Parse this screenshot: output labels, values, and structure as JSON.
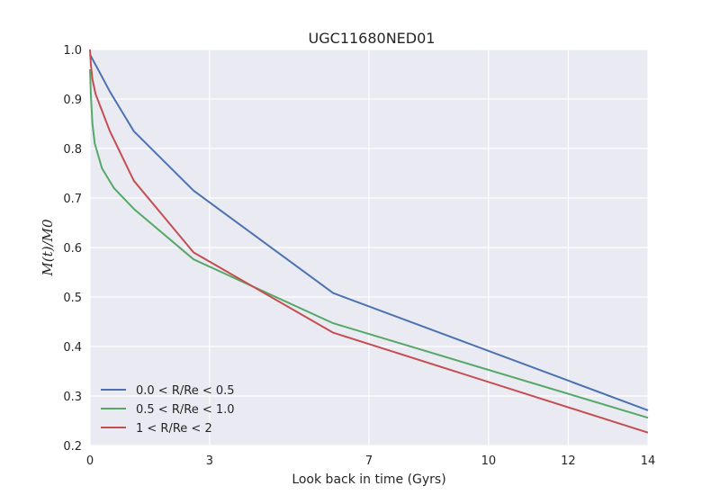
{
  "chart_data": {
    "type": "line",
    "title": "UGC11680NED01",
    "xlabel": "Look back in time (Gyrs)",
    "ylabel": "M(t)/M0",
    "xlim": [
      0,
      14
    ],
    "ylim": [
      0.2,
      1.0
    ],
    "xticks": [
      0,
      3,
      7,
      10,
      12,
      14
    ],
    "yticks": [
      0.2,
      0.3,
      0.4,
      0.5,
      0.6,
      0.7,
      0.8,
      0.9,
      1.0
    ],
    "grid": true,
    "legend_position": "lower-left",
    "series": [
      {
        "name": "0.0 < R/Re < 0.5",
        "color": "#4C72B0",
        "x": [
          0,
          0.1,
          0.2,
          0.5,
          1.1,
          2.6,
          6.1,
          14.0
        ],
        "y": [
          0.99,
          0.975,
          0.96,
          0.915,
          0.835,
          0.715,
          0.508,
          0.271
        ]
      },
      {
        "name": "0.5 < R/Re < 1.0",
        "color": "#55A868",
        "x": [
          0,
          0.02,
          0.06,
          0.12,
          0.3,
          0.6,
          1.1,
          2.6,
          6.1,
          14.0
        ],
        "y": [
          0.96,
          0.91,
          0.85,
          0.81,
          0.76,
          0.72,
          0.678,
          0.576,
          0.447,
          0.256
        ]
      },
      {
        "name": "1 < R/Re < 2",
        "color": "#C44E52",
        "x": [
          0,
          0.02,
          0.06,
          0.14,
          0.5,
          1.1,
          2.6,
          6.1,
          14.0
        ],
        "y": [
          1.0,
          0.97,
          0.94,
          0.91,
          0.835,
          0.735,
          0.59,
          0.428,
          0.226
        ]
      }
    ]
  }
}
